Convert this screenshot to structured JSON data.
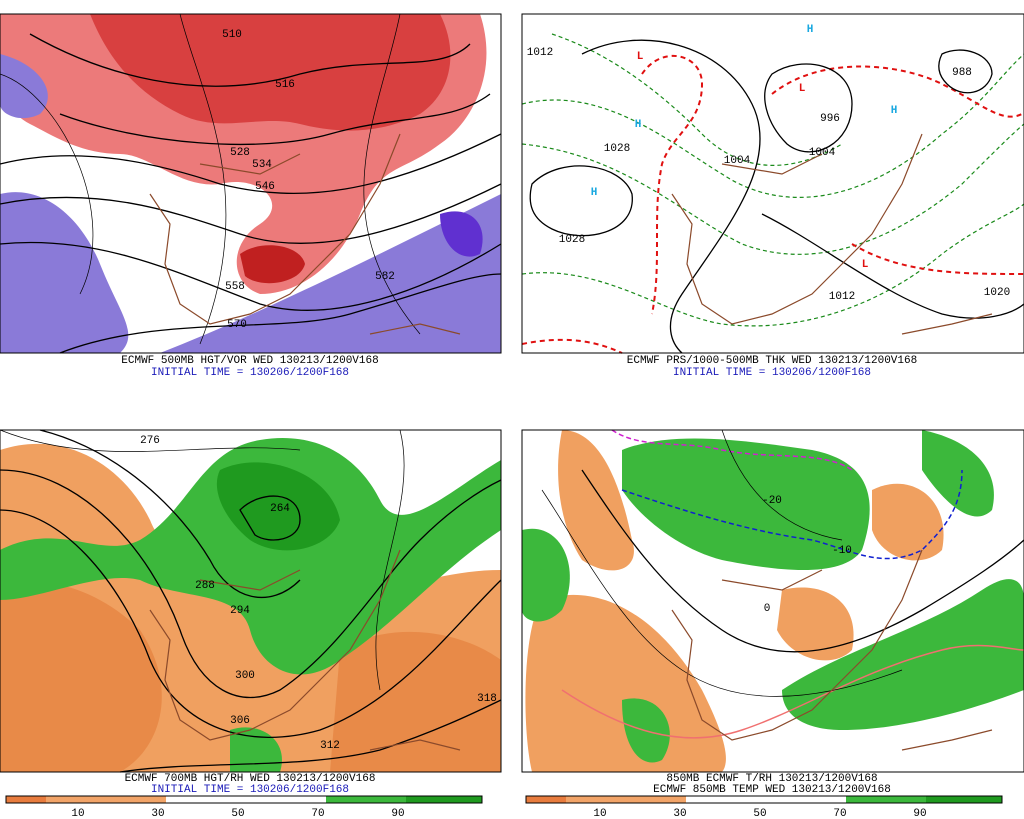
{
  "panels": [
    {
      "caption": "ECMWF 500MB HGT/VOR WED 130213/1200V168",
      "subcaption": "INITIAL TIME = 130206/1200F168",
      "labels": [
        "570",
        "582",
        "546",
        "558",
        "516",
        "528",
        "534",
        "510"
      ]
    },
    {
      "caption": "ECMWF PRS/1000-500MB THK WED 130213/1200V168",
      "subcaption": "INITIAL TIME = 130206/1200F168",
      "labels": [
        "1028",
        "1012",
        "1020",
        "996",
        "1004",
        "988",
        "1028",
        "1012",
        "1004"
      ],
      "symbols": [
        "L",
        "L",
        "L",
        "H",
        "H",
        "H",
        "H"
      ]
    },
    {
      "caption": "ECMWF 700MB HGT/RH WED 130213/1200V168",
      "subcaption": "INITIAL TIME = 130206/1200F168",
      "labels": [
        "306",
        "312",
        "318",
        "300",
        "294",
        "288",
        "276",
        "264"
      ],
      "colorbar": [
        "10",
        "30",
        "50",
        "70",
        "90"
      ]
    },
    {
      "caption": "850MB ECMWF T/RH 130213/1200V168",
      "subcaption": "ECMWF 850MB TEMP WED 130213/1200V168",
      "labels": [
        "-10",
        "0",
        "-20"
      ],
      "colorbar": [
        "10",
        "30",
        "50",
        "70",
        "90"
      ]
    }
  ]
}
